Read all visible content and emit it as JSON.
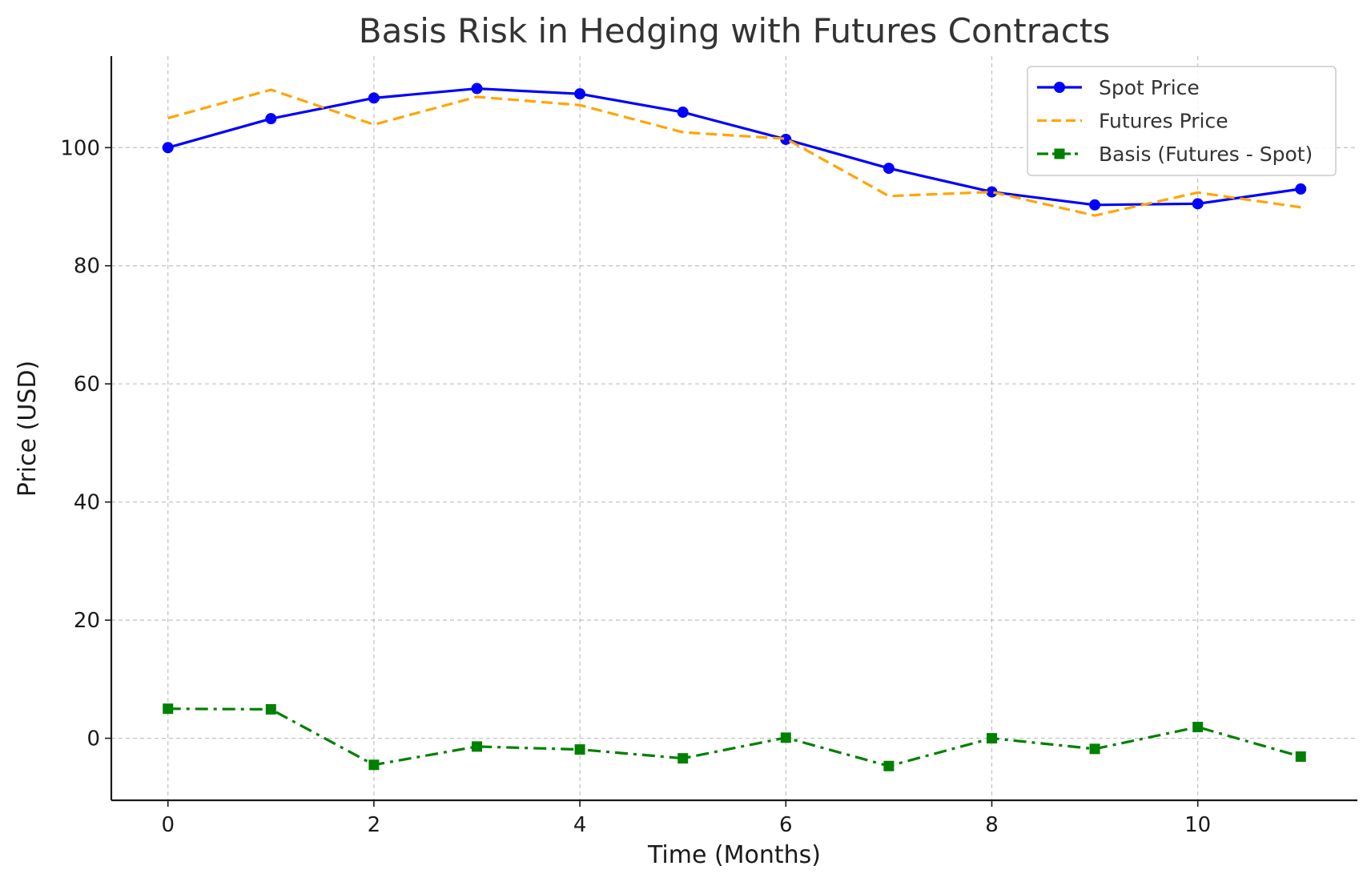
{
  "chart_data": {
    "type": "line",
    "title": "Basis Risk in Hedging with Futures Contracts",
    "xlabel": "Time (Months)",
    "ylabel": "Price (USD)",
    "x": [
      0,
      1,
      2,
      3,
      4,
      5,
      6,
      7,
      8,
      9,
      10,
      11
    ],
    "xlim": [
      -0.55,
      11.55
    ],
    "ylim": [
      -10.5,
      115.5
    ],
    "xticks": [
      0,
      2,
      4,
      6,
      8,
      10
    ],
    "yticks": [
      0,
      20,
      40,
      60,
      80,
      100
    ],
    "grid": true,
    "legend_position": "top-right",
    "series": [
      {
        "name": "Spot Price",
        "color": "#0000ff",
        "line_style": "solid",
        "marker": "circle",
        "values": [
          100.0,
          104.9,
          108.4,
          110.0,
          109.1,
          106.0,
          101.4,
          96.5,
          92.5,
          90.3,
          90.5,
          93.0
        ]
      },
      {
        "name": "Futures Price",
        "color": "#ffa500",
        "line_style": "dashed",
        "marker": "none",
        "values": [
          105.0,
          109.8,
          103.9,
          108.6,
          107.2,
          102.6,
          101.5,
          91.8,
          92.5,
          88.5,
          92.4,
          89.9
        ]
      },
      {
        "name": "Basis (Futures - Spot)",
        "color": "#008000",
        "line_style": "dashdot",
        "marker": "square",
        "values": [
          5.0,
          4.9,
          -4.5,
          -1.4,
          -1.9,
          -3.4,
          0.1,
          -4.7,
          0.0,
          -1.8,
          1.9,
          -3.1
        ]
      }
    ]
  }
}
